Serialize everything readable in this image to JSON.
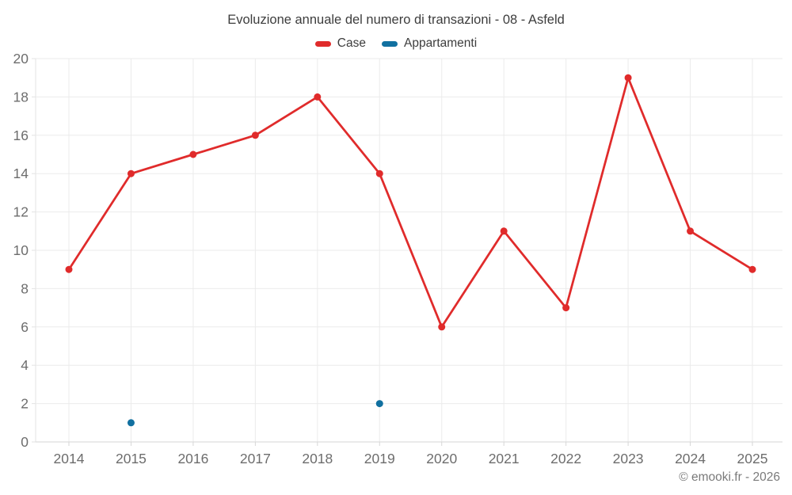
{
  "title": "Evoluzione annuale del numero di transazioni - 08 - Asfeld",
  "copyright": "© emooki.fr - 2026",
  "legend": {
    "items": [
      {
        "label": "Case",
        "color": "#e02b2b"
      },
      {
        "label": "Appartamenti",
        "color": "#1170a0"
      }
    ]
  },
  "colors": {
    "grid": "#ebebeb",
    "axis_bottom": "#d6d6d6",
    "axis_left": "#e3e3e3",
    "tick_label": "#6d6d6d",
    "case_red": "#e02b2b",
    "appartamenti_blue": "#1170a0"
  },
  "chart_data": {
    "type": "line",
    "title": "Evoluzione annuale del numero di transazioni - 08 - Asfeld",
    "categories": [
      "2014",
      "2015",
      "2016",
      "2017",
      "2018",
      "2019",
      "2020",
      "2021",
      "2022",
      "2023",
      "2024",
      "2025"
    ],
    "series": [
      {
        "name": "Case",
        "type": "line",
        "color": "#e02b2b",
        "values": [
          9,
          14,
          15,
          16,
          18,
          14,
          6,
          11,
          7,
          19,
          11,
          9
        ]
      },
      {
        "name": "Appartamenti",
        "type": "scatter",
        "color": "#1170a0",
        "values": [
          null,
          1,
          null,
          null,
          null,
          2,
          null,
          null,
          null,
          null,
          null,
          null
        ]
      }
    ],
    "xlabel": "",
    "ylabel": "",
    "ylim": [
      0,
      20
    ],
    "ytick_step": 2,
    "grid": true,
    "legend_position": "top"
  }
}
